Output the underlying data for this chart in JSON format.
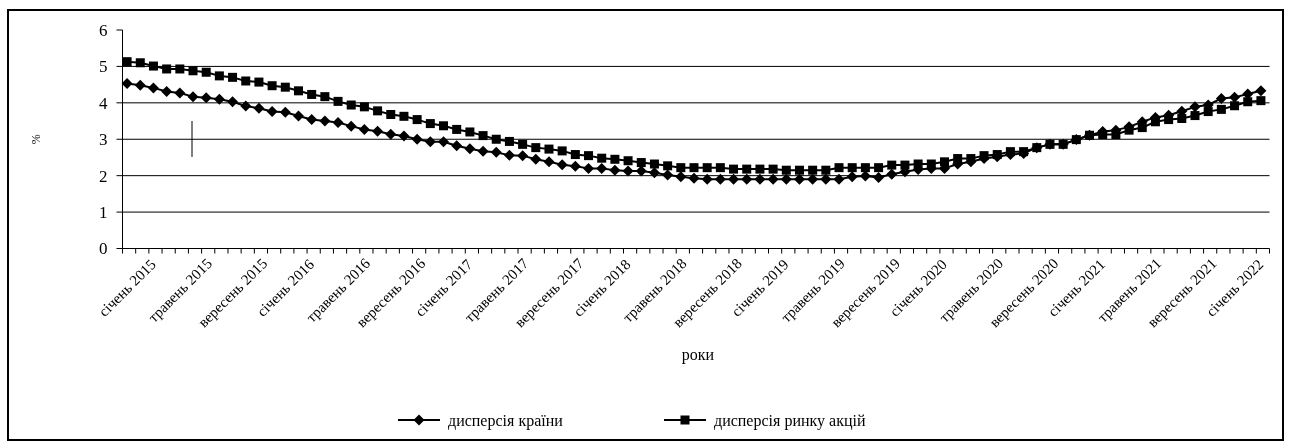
{
  "chart_data": {
    "type": "line",
    "xlabel": "роки",
    "ylabel": "%",
    "ylim": [
      0,
      6
    ],
    "yticks": [
      0,
      1,
      2,
      3,
      4,
      5,
      6
    ],
    "grid": "y",
    "legend": "bottom",
    "line_style": "solid",
    "categories": [
      "січень 2015",
      null,
      null,
      null,
      "травень 2015",
      null,
      null,
      null,
      "вересень 2015",
      null,
      null,
      null,
      "січень 2016",
      null,
      null,
      null,
      "травень 2016",
      null,
      null,
      null,
      "вересень 2016",
      null,
      null,
      null,
      "січень 2017",
      null,
      null,
      null,
      "травень 2017",
      null,
      null,
      null,
      "вересень 2017",
      null,
      null,
      null,
      "січень 2018",
      null,
      null,
      null,
      "травень 2018",
      null,
      null,
      null,
      "вересень 2018",
      null,
      null,
      null,
      "січень 2019",
      null,
      null,
      null,
      "травень 2019",
      null,
      null,
      null,
      "вересень 2019",
      null,
      null,
      null,
      "січень 2020",
      null,
      null,
      null,
      "травень 2020",
      null,
      null,
      null,
      "вересень 2020",
      null,
      null,
      null,
      "січень 2021",
      null,
      null,
      null,
      "травень 2021",
      null,
      null,
      null,
      "вересень 2021",
      null,
      null,
      null,
      "січень 2022",
      null,
      null
    ],
    "series": [
      {
        "name": "дисперсія країни",
        "color": "#000000",
        "marker": "diamond",
        "values": [
          4.53,
          4.48,
          4.41,
          4.31,
          4.27,
          4.17,
          4.14,
          4.1,
          4.03,
          3.91,
          3.85,
          3.76,
          3.74,
          3.64,
          3.54,
          3.5,
          3.46,
          3.36,
          3.27,
          3.22,
          3.14,
          3.09,
          3.0,
          2.93,
          2.93,
          2.82,
          2.74,
          2.67,
          2.64,
          2.56,
          2.55,
          2.45,
          2.38,
          2.3,
          2.26,
          2.2,
          2.2,
          2.15,
          2.13,
          2.13,
          2.08,
          2.02,
          1.97,
          1.93,
          1.9,
          1.9,
          1.9,
          1.9,
          1.9,
          1.9,
          1.9,
          1.9,
          1.9,
          1.9,
          1.9,
          1.97,
          1.99,
          1.95,
          2.04,
          2.11,
          2.17,
          2.2,
          2.2,
          2.32,
          2.38,
          2.47,
          2.52,
          2.58,
          2.61,
          2.77,
          2.86,
          2.86,
          2.99,
          3.11,
          3.21,
          3.25,
          3.34,
          3.48,
          3.6,
          3.66,
          3.77,
          3.89,
          3.94,
          4.12,
          4.15,
          4.24,
          4.33
        ]
      },
      {
        "name": "дисперсія ринку акцій",
        "color": "#000000",
        "marker": "square",
        "values": [
          5.13,
          5.1,
          5.01,
          4.93,
          4.93,
          4.88,
          4.84,
          4.74,
          4.7,
          4.6,
          4.57,
          4.47,
          4.43,
          4.33,
          4.23,
          4.17,
          4.04,
          3.94,
          3.89,
          3.78,
          3.68,
          3.63,
          3.54,
          3.43,
          3.37,
          3.27,
          3.2,
          3.1,
          3.0,
          2.94,
          2.86,
          2.77,
          2.73,
          2.68,
          2.58,
          2.55,
          2.48,
          2.45,
          2.41,
          2.36,
          2.32,
          2.27,
          2.22,
          2.22,
          2.22,
          2.22,
          2.18,
          2.18,
          2.18,
          2.18,
          2.15,
          2.15,
          2.15,
          2.15,
          2.22,
          2.22,
          2.22,
          2.22,
          2.29,
          2.29,
          2.32,
          2.32,
          2.38,
          2.47,
          2.47,
          2.55,
          2.58,
          2.66,
          2.66,
          2.77,
          2.86,
          2.86,
          2.99,
          3.11,
          3.13,
          3.13,
          3.25,
          3.32,
          3.48,
          3.54,
          3.57,
          3.65,
          3.76,
          3.82,
          3.92,
          4.03,
          4.06
        ]
      }
    ]
  }
}
